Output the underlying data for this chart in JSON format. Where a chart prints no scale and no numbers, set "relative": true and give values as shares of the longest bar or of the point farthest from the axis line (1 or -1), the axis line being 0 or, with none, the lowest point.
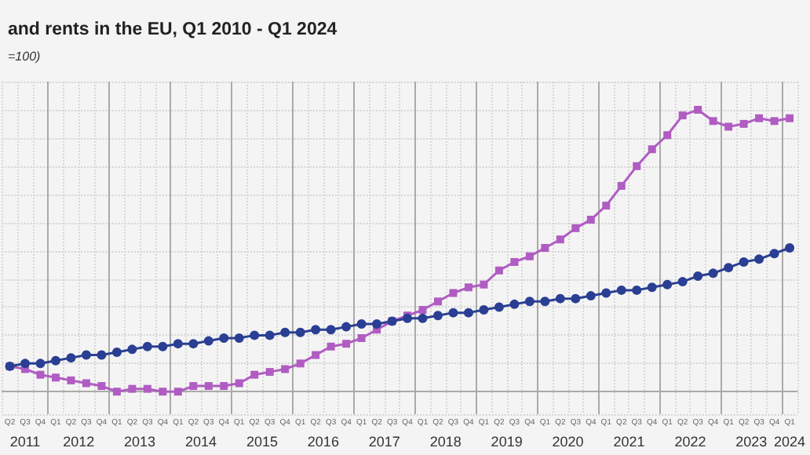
{
  "chart_data": {
    "type": "line",
    "title": "and rents in the EU, Q1 2010 - Q1 2024",
    "subtitle": "=100)",
    "relative": true,
    "grid": true,
    "categories": [
      "Q2",
      "Q3",
      "Q4",
      "Q1",
      "Q2",
      "Q3",
      "Q4",
      "Q1",
      "Q2",
      "Q3",
      "Q4",
      "Q1",
      "Q2",
      "Q3",
      "Q4",
      "Q1",
      "Q2",
      "Q3",
      "Q4",
      "Q1",
      "Q2",
      "Q3",
      "Q4",
      "Q1",
      "Q2",
      "Q3",
      "Q4",
      "Q1",
      "Q2",
      "Q3",
      "Q4",
      "Q1",
      "Q2",
      "Q3",
      "Q4",
      "Q1",
      "Q2",
      "Q3",
      "Q4",
      "Q1",
      "Q2",
      "Q3",
      "Q4",
      "Q1",
      "Q2",
      "Q3",
      "Q4",
      "Q1",
      "Q2",
      "Q3",
      "Q4",
      "Q1"
    ],
    "annotations": [
      "2011",
      "2012",
      "2013",
      "2014",
      "2015",
      "2016",
      "2017",
      "2018",
      "2019",
      "2020",
      "2021",
      "2022",
      "2023",
      "2024"
    ],
    "series": [
      {
        "color": "#b05cc2",
        "marker": "square",
        "values": [
          0.09,
          0.08,
          0.06,
          0.05,
          0.04,
          0.03,
          0.02,
          0.0,
          0.01,
          0.01,
          0.0,
          0.0,
          0.02,
          0.02,
          0.02,
          0.03,
          0.06,
          0.07,
          0.08,
          0.1,
          0.13,
          0.16,
          0.17,
          0.19,
          0.22,
          0.25,
          0.27,
          0.29,
          0.32,
          0.35,
          0.37,
          0.38,
          0.43,
          0.46,
          0.48,
          0.51,
          0.54,
          0.58,
          0.61,
          0.66,
          0.73,
          0.8,
          0.86,
          0.91,
          0.98,
          1,
          0.96,
          0.94,
          0.95,
          0.97,
          0.96,
          0.97
        ]
      },
      {
        "color": "#2a3f93",
        "marker": "circle",
        "values": [
          0.09,
          0.1,
          0.1,
          0.11,
          0.12,
          0.13,
          0.13,
          0.14,
          0.15,
          0.16,
          0.16,
          0.17,
          0.17,
          0.18,
          0.19,
          0.19,
          0.2,
          0.2,
          0.21,
          0.21,
          0.22,
          0.22,
          0.23,
          0.24,
          0.24,
          0.25,
          0.26,
          0.26,
          0.27,
          0.28,
          0.28,
          0.29,
          0.3,
          0.31,
          0.32,
          0.32,
          0.33,
          0.33,
          0.34,
          0.35,
          0.36,
          0.36,
          0.37,
          0.38,
          0.39,
          0.41,
          0.42,
          0.44,
          0.46,
          0.47,
          0.49,
          0.51
        ]
      }
    ]
  }
}
